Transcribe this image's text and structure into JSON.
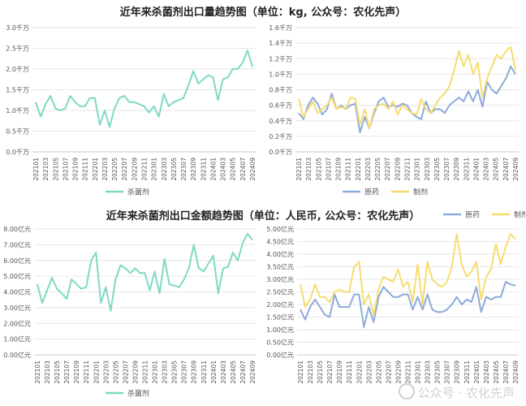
{
  "titles": {
    "top": "近年来杀菌剂出口量趋势图（单位：kg, 公众号：农化先声）",
    "bottom": "近年来杀菌剂出口金额趋势图（单位：人民币, 公众号：农化先声）"
  },
  "watermark": "公众号 · 农化先声",
  "colors": {
    "green": "#7ed9c4",
    "blue": "#8eaadb",
    "yellow": "#f7dc6f",
    "grid": "#e6e6e6",
    "axis": "#cccccc",
    "text": "#555555"
  },
  "chart_data": [
    {
      "type": "line",
      "x_tick_labels": [
        "202101",
        "202103",
        "202105",
        "202107",
        "202109",
        "202111",
        "202201",
        "202203",
        "202205",
        "202207",
        "202209",
        "202211",
        "202301",
        "202303",
        "202305",
        "202307",
        "202309",
        "202311",
        "202401",
        "202403",
        "202405",
        "202407",
        "202409"
      ],
      "y_tick_labels": [
        "0.0千万",
        "0.5千万",
        "1.0千万",
        "1.5千万",
        "2.0千万",
        "2.5千万",
        "3.0千万"
      ],
      "ylim": [
        0,
        3.0
      ],
      "legend_position": "bottom",
      "series": [
        {
          "name": "杀菌剂",
          "color": "#7ed9c4",
          "values": [
            1.2,
            0.85,
            1.15,
            1.35,
            1.05,
            1.0,
            1.05,
            1.35,
            1.2,
            1.1,
            1.1,
            1.3,
            1.3,
            0.65,
            1.0,
            0.6,
            1.05,
            1.3,
            1.35,
            1.2,
            1.2,
            1.15,
            1.1,
            0.95,
            1.1,
            0.85,
            1.4,
            1.1,
            1.2,
            1.25,
            1.3,
            1.6,
            1.95,
            1.65,
            1.75,
            1.85,
            1.8,
            1.25,
            1.75,
            1.8,
            2.0,
            2.0,
            2.15,
            2.45,
            2.05
          ]
        }
      ]
    },
    {
      "type": "line",
      "x_tick_labels": [
        "202101",
        "202103",
        "202105",
        "202107",
        "202109",
        "202111",
        "202201",
        "202203",
        "202205",
        "202207",
        "202209",
        "202211",
        "202301",
        "202303",
        "202305",
        "202307",
        "202309",
        "202311",
        "202401",
        "202403",
        "202405",
        "202407",
        "202409"
      ],
      "y_tick_labels": [
        "0.0千万",
        "0.2千万",
        "0.4千万",
        "0.6千万",
        "0.8千万",
        "1.0千万",
        "1.2千万",
        "1.4千万",
        "1.6千万"
      ],
      "ylim": [
        0,
        1.6
      ],
      "legend_position": "bottom",
      "series": [
        {
          "name": "原药",
          "color": "#8eaadb",
          "values": [
            0.5,
            0.42,
            0.6,
            0.7,
            0.62,
            0.48,
            0.55,
            0.75,
            0.55,
            0.6,
            0.55,
            0.6,
            0.62,
            0.25,
            0.45,
            0.3,
            0.5,
            0.65,
            0.7,
            0.58,
            0.6,
            0.58,
            0.62,
            0.6,
            0.5,
            0.45,
            0.42,
            0.65,
            0.5,
            0.55,
            0.55,
            0.5,
            0.6,
            0.65,
            0.7,
            0.65,
            0.78,
            0.65,
            0.8,
            0.58,
            0.9,
            0.8,
            0.75,
            0.85,
            0.95,
            1.1,
            1.0
          ]
        },
        {
          "name": "制剂",
          "color": "#f7dc6f",
          "values": [
            0.68,
            0.45,
            0.55,
            0.65,
            0.5,
            0.55,
            0.6,
            0.7,
            0.55,
            0.58,
            0.55,
            0.7,
            0.68,
            0.35,
            0.55,
            0.3,
            0.55,
            0.6,
            0.62,
            0.55,
            0.65,
            0.48,
            0.6,
            0.55,
            0.5,
            0.48,
            0.68,
            0.55,
            0.5,
            0.6,
            0.7,
            0.75,
            0.85,
            1.05,
            1.3,
            1.1,
            1.25,
            1.0,
            1.15,
            0.7,
            0.95,
            1.1,
            1.25,
            1.2,
            1.3,
            1.35,
            1.05
          ]
        }
      ]
    },
    {
      "type": "line",
      "x_tick_labels": [
        "202101",
        "202103",
        "202105",
        "202107",
        "202109",
        "202111",
        "202201",
        "202203",
        "202205",
        "202207",
        "202209",
        "202211",
        "202301",
        "202303",
        "202305",
        "202307",
        "202309",
        "202311",
        "202401",
        "202403",
        "202405",
        "202407",
        "202409"
      ],
      "y_tick_labels": [
        "0.00亿元",
        "1.00亿元",
        "2.00亿元",
        "3.00亿元",
        "4.00亿元",
        "5.00亿元",
        "6.00亿元",
        "7.00亿元",
        "8.00亿元"
      ],
      "ylim": [
        0,
        8.0
      ],
      "legend_position": "bottom",
      "series": [
        {
          "name": "杀菌剂",
          "color": "#7ed9c4",
          "values": [
            4.5,
            3.3,
            4.1,
            4.9,
            4.2,
            3.9,
            3.55,
            4.8,
            4.5,
            4.2,
            4.3,
            6.0,
            6.5,
            3.3,
            4.3,
            2.8,
            4.8,
            5.7,
            5.5,
            5.2,
            5.5,
            5.2,
            5.2,
            4.1,
            5.3,
            3.9,
            6.1,
            4.5,
            4.4,
            4.3,
            4.8,
            5.5,
            7.0,
            5.5,
            5.3,
            5.8,
            6.3,
            3.9,
            5.5,
            5.6,
            6.5,
            6.0,
            7.1,
            7.7,
            7.3
          ]
        }
      ]
    },
    {
      "type": "line",
      "x_tick_labels": [
        "202101",
        "202103",
        "202105",
        "202107",
        "202109",
        "202111",
        "202201",
        "202203",
        "202205",
        "202207",
        "202209",
        "202211",
        "202301",
        "202303",
        "202305",
        "202307",
        "202309",
        "202311",
        "202401",
        "202403",
        "202405",
        "202407",
        "202409"
      ],
      "y_tick_labels": [
        "0.00亿元",
        "0.50亿元",
        "1.00亿元",
        "1.50亿元",
        "2.00亿元",
        "2.50亿元",
        "3.00亿元",
        "3.50亿元",
        "4.00亿元",
        "4.50亿元",
        "5.00亿元"
      ],
      "ylim": [
        0,
        5.0
      ],
      "legend_position": "top-right",
      "series": [
        {
          "name": "原药",
          "color": "#8eaadb",
          "values": [
            1.8,
            1.4,
            1.9,
            2.2,
            1.9,
            1.6,
            1.5,
            2.4,
            1.9,
            1.9,
            1.9,
            2.4,
            2.4,
            1.1,
            1.9,
            1.3,
            2.3,
            2.7,
            2.5,
            2.3,
            2.3,
            2.4,
            2.4,
            1.8,
            2.3,
            1.8,
            2.4,
            1.8,
            1.7,
            1.7,
            1.8,
            2.0,
            2.3,
            2.0,
            2.2,
            2.1,
            2.7,
            1.7,
            2.3,
            2.2,
            2.3,
            2.3,
            2.9,
            2.8,
            2.75
          ]
        },
        {
          "name": "制剂",
          "color": "#f7dc6f",
          "values": [
            2.8,
            1.9,
            2.2,
            2.8,
            2.3,
            2.3,
            2.1,
            2.5,
            2.6,
            2.5,
            2.5,
            3.5,
            3.7,
            2.0,
            2.4,
            1.6,
            2.6,
            3.1,
            3.0,
            2.9,
            3.4,
            2.7,
            2.9,
            2.1,
            3.6,
            2.0,
            3.7,
            3.0,
            2.8,
            2.7,
            2.9,
            3.5,
            4.8,
            3.6,
            3.1,
            3.3,
            3.7,
            2.2,
            3.1,
            3.4,
            4.4,
            3.6,
            4.3,
            4.8,
            4.6
          ]
        }
      ]
    }
  ]
}
